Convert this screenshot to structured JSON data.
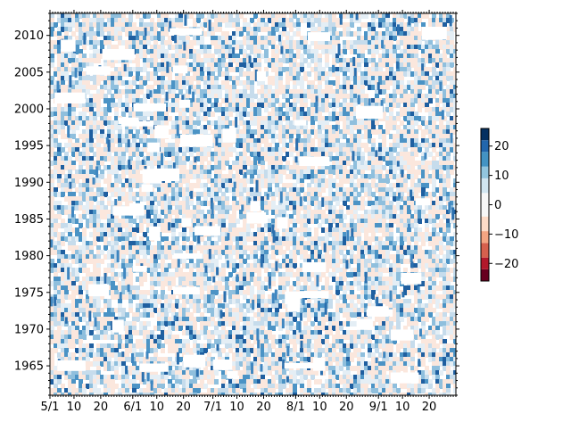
{
  "chart_data": {
    "type": "heatmap",
    "title": "",
    "xlabel": "",
    "ylabel": "",
    "x_tick_labels": [
      "5/1",
      "10",
      "20",
      "6/1",
      "10",
      "20",
      "7/1",
      "10",
      "20",
      "8/1",
      "10",
      "20",
      "9/1",
      "10",
      "20"
    ],
    "x_tick_days": [
      0,
      9,
      19,
      31,
      40,
      50,
      61,
      70,
      80,
      92,
      101,
      111,
      123,
      132,
      142
    ],
    "x_range_days": [
      0,
      152
    ],
    "y_ticks": [
      1965,
      1970,
      1975,
      1980,
      1985,
      1990,
      1995,
      2000,
      2005,
      2010
    ],
    "y_range": [
      1961,
      2013
    ],
    "grid": false,
    "colorbar": {
      "ticks": [
        20,
        10,
        0,
        -10,
        -20
      ],
      "range": [
        -26,
        26
      ],
      "level_colors": [
        "#67001f",
        "#b2182b",
        "#d6604d",
        "#f4a582",
        "#fddbc7",
        "#f7f7f7",
        "#d1e5f0",
        "#92c5de",
        "#4393c3",
        "#2166ac",
        "#053061"
      ],
      "level_bounds": [
        -26,
        -22,
        -18,
        -13,
        -9,
        -4,
        4,
        9,
        13,
        18,
        22,
        26
      ]
    },
    "field_color_weights": {
      "#fbe7dd": 0.3,
      "#ffffff": 0.2,
      "#e4eef5": 0.15,
      "#c6dcec": 0.13,
      "#8fbfdd": 0.1,
      "#4b93c5": 0.08,
      "#1f5fa0": 0.04
    }
  }
}
